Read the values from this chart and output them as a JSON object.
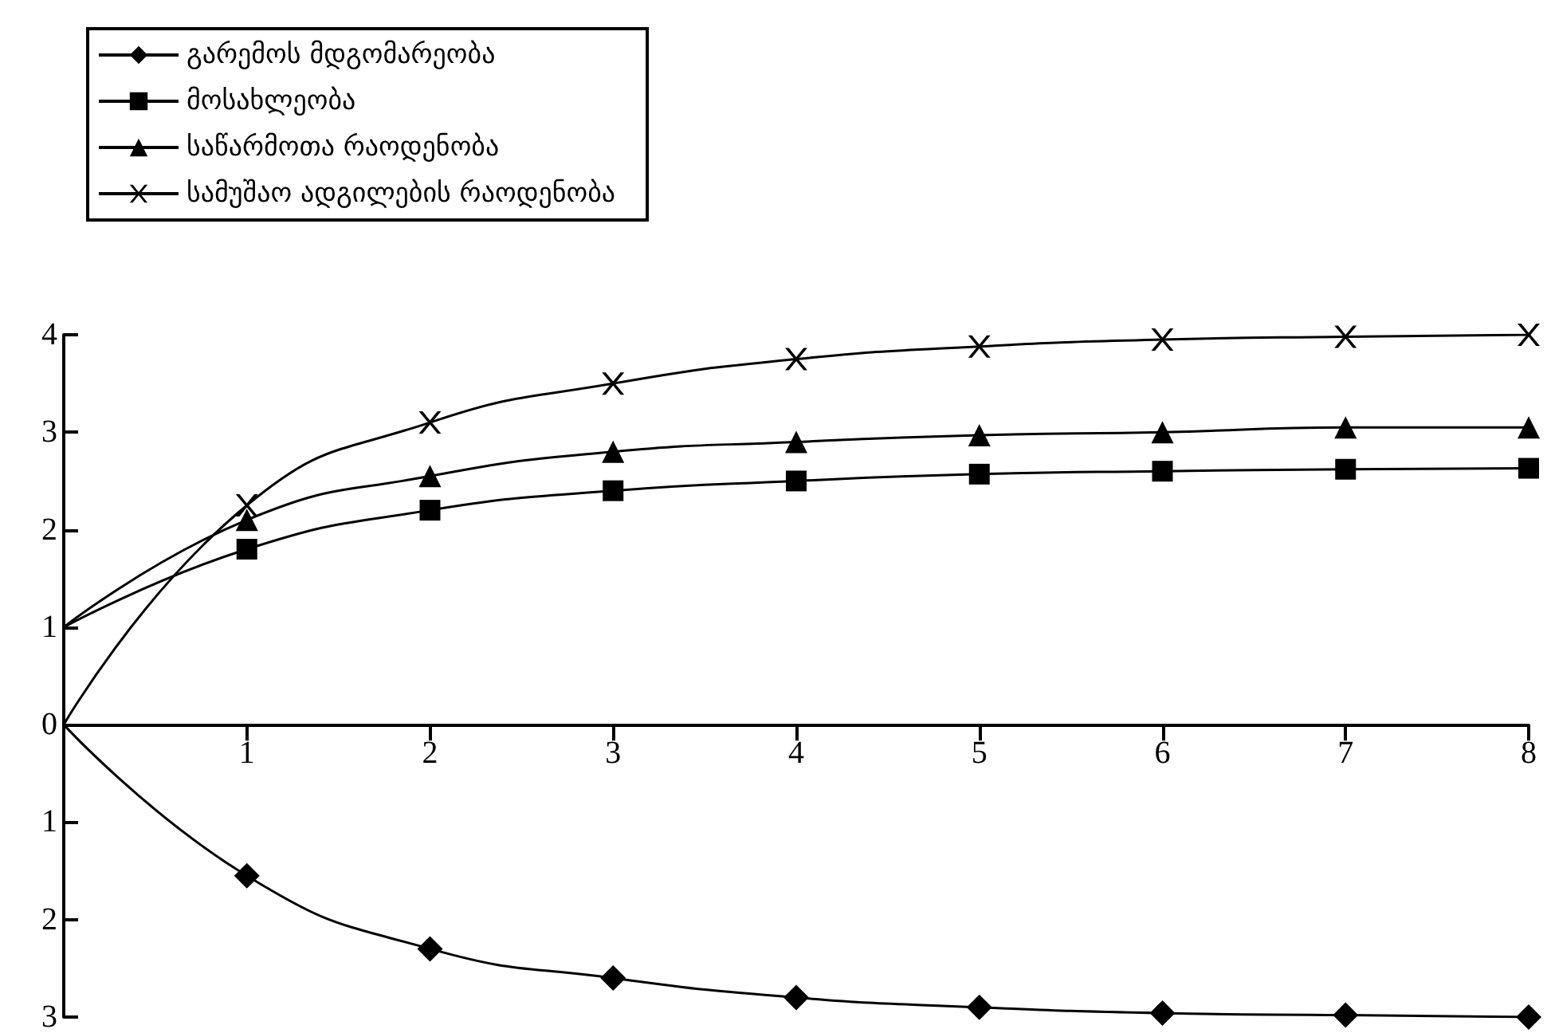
{
  "chart_data": {
    "type": "line",
    "x": [
      0,
      1,
      2,
      3,
      4,
      5,
      6,
      7,
      8
    ],
    "xlim": [
      0,
      8
    ],
    "xticks": [
      1,
      2,
      3,
      4,
      5,
      6,
      7,
      8
    ],
    "ylim": [
      -3,
      4
    ],
    "yticks": [
      {
        "value": -3,
        "label": "3"
      },
      {
        "value": -2,
        "label": "2"
      },
      {
        "value": -1,
        "label": "1"
      },
      0,
      1,
      2,
      3,
      4
    ],
    "grid": false,
    "legend": "top left",
    "line_style": "solid",
    "series": [
      {
        "name": "გარემოს მდგომარეობა",
        "color": "#000000",
        "marker": "diamond",
        "values": [
          0,
          -1.55,
          -2.3,
          -2.6,
          -2.8,
          -2.9,
          -2.96,
          -2.98,
          -3.0
        ]
      },
      {
        "name": "მოსახლეობა",
        "color": "#000000",
        "marker": "square",
        "values": [
          1,
          1.8,
          2.2,
          2.4,
          2.5,
          2.57,
          2.6,
          2.62,
          2.63
        ]
      },
      {
        "name": "საწარმოთა რაოდენობა",
        "color": "#000000",
        "marker": "triangle",
        "values": [
          1,
          2.1,
          2.55,
          2.8,
          2.9,
          2.97,
          3.0,
          3.05,
          3.05
        ]
      },
      {
        "name": "სამუშაო ადგილების რაოდენობა",
        "color": "#000000",
        "marker": "cross",
        "values": [
          0,
          2.25,
          3.1,
          3.5,
          3.75,
          3.88,
          3.95,
          3.98,
          4.0
        ]
      }
    ]
  }
}
